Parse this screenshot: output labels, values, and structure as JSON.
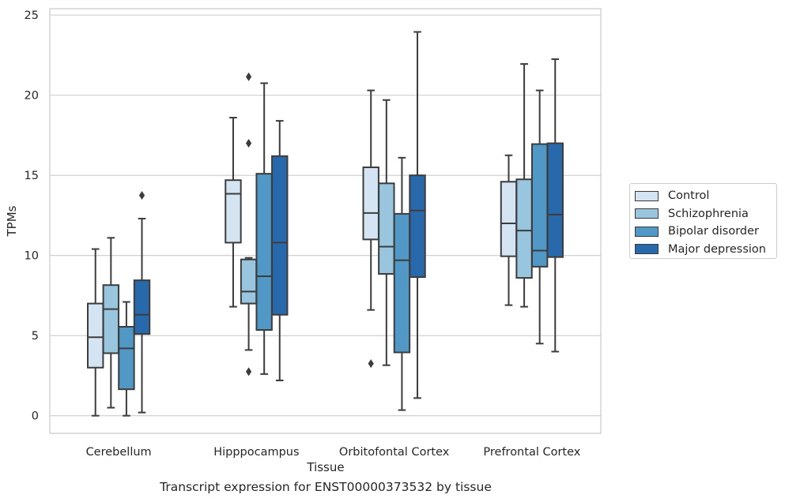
{
  "chart_data": {
    "type": "box",
    "caption": "Transcript expression for ENST00000373532 by tissue",
    "xlabel": "Tissue",
    "ylabel": "TPMs",
    "ylim": [
      -1.1,
      25.4
    ],
    "yticks": [
      0,
      5,
      10,
      15,
      20,
      25
    ],
    "grid": "horizontal",
    "legend_position": "outside-right",
    "categories": [
      "Cerebellum",
      "Hipppocampus",
      "Orbitofontal Cortex",
      "Prefrontal Cortex"
    ],
    "series": [
      {
        "name": "Control",
        "color": "#d5e4f2",
        "boxes": [
          {
            "whislo": 0.0,
            "q1": 3.0,
            "med": 4.9,
            "q3": 7.0,
            "whishi": 10.4,
            "fliers": []
          },
          {
            "whislo": 6.8,
            "q1": 10.8,
            "med": 13.85,
            "q3": 14.7,
            "whishi": 18.6,
            "fliers": []
          },
          {
            "whislo": 6.6,
            "q1": 11.0,
            "med": 12.65,
            "q3": 15.5,
            "whishi": 20.3,
            "fliers": [
              3.25
            ]
          },
          {
            "whislo": 6.9,
            "q1": 9.95,
            "med": 12.0,
            "q3": 14.6,
            "whishi": 16.25,
            "fliers": []
          }
        ]
      },
      {
        "name": "Schizophrenia",
        "color": "#9ac5df",
        "boxes": [
          {
            "whislo": 0.5,
            "q1": 3.9,
            "med": 6.65,
            "q3": 8.15,
            "whishi": 11.1,
            "fliers": []
          },
          {
            "whislo": 4.1,
            "q1": 7.0,
            "med": 7.75,
            "q3": 9.75,
            "whishi": 9.85,
            "fliers": [
              2.75,
              17.0,
              21.15
            ]
          },
          {
            "whislo": 3.15,
            "q1": 8.85,
            "med": 10.55,
            "q3": 14.5,
            "whishi": 19.7,
            "fliers": []
          },
          {
            "whislo": 6.8,
            "q1": 8.6,
            "med": 11.55,
            "q3": 14.75,
            "whishi": 21.95,
            "fliers": []
          }
        ]
      },
      {
        "name": "Bipolar disorder",
        "color": "#5198c7",
        "boxes": [
          {
            "whislo": 0.0,
            "q1": 1.65,
            "med": 4.2,
            "q3": 5.55,
            "whishi": 7.1,
            "fliers": []
          },
          {
            "whislo": 2.6,
            "q1": 5.35,
            "med": 8.7,
            "q3": 15.1,
            "whishi": 20.75,
            "fliers": []
          },
          {
            "whislo": 0.35,
            "q1": 3.95,
            "med": 9.7,
            "q3": 12.6,
            "whishi": 16.1,
            "fliers": []
          },
          {
            "whislo": 4.5,
            "q1": 9.3,
            "med": 10.3,
            "q3": 16.95,
            "whishi": 20.3,
            "fliers": []
          }
        ]
      },
      {
        "name": "Major depression",
        "color": "#2869ab",
        "boxes": [
          {
            "whislo": 0.2,
            "q1": 5.1,
            "med": 6.3,
            "q3": 8.45,
            "whishi": 12.3,
            "fliers": [
              13.75
            ]
          },
          {
            "whislo": 2.2,
            "q1": 6.3,
            "med": 10.8,
            "q3": 16.2,
            "whishi": 18.4,
            "fliers": []
          },
          {
            "whislo": 1.1,
            "q1": 8.65,
            "med": 12.8,
            "q3": 15.0,
            "whishi": 23.95,
            "fliers": []
          },
          {
            "whislo": 4.0,
            "q1": 9.9,
            "med": 12.55,
            "q3": 17.0,
            "whishi": 22.25,
            "fliers": []
          }
        ]
      }
    ]
  }
}
